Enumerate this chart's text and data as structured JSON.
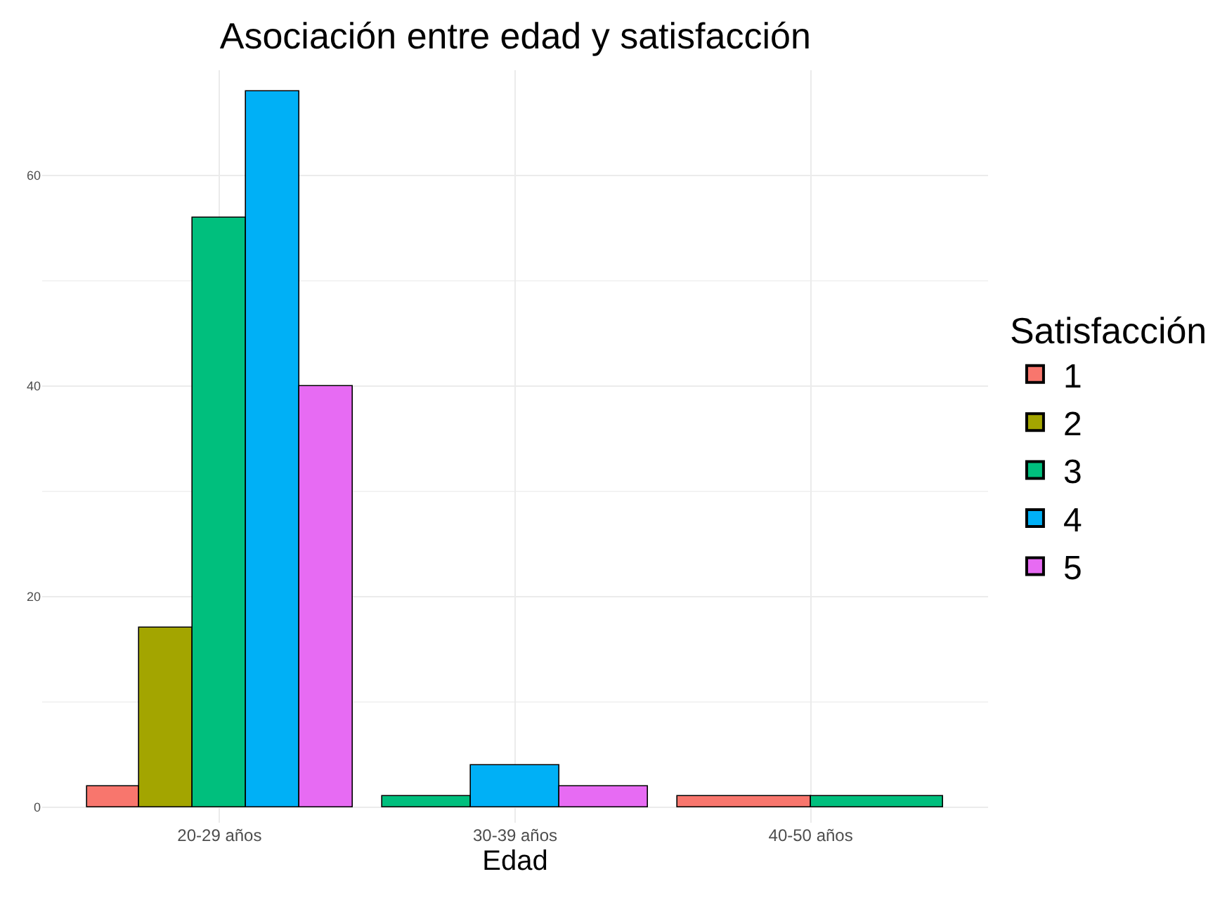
{
  "chart_data": {
    "type": "bar",
    "title": "Asociación entre edad y satisfacción",
    "xlabel": "Edad",
    "legend_title": "Satisfacción",
    "categories": [
      "20-29 años",
      "30-39 años",
      "40-50 años"
    ],
    "series": [
      {
        "name": "1",
        "color": "#f8766d",
        "values": [
          2,
          null,
          1
        ]
      },
      {
        "name": "2",
        "color": "#a3a500",
        "values": [
          17,
          null,
          null
        ]
      },
      {
        "name": "3",
        "color": "#00bf7d",
        "values": [
          56,
          1,
          1
        ]
      },
      {
        "name": "4",
        "color": "#00b0f6",
        "values": [
          68,
          4,
          null
        ]
      },
      {
        "name": "5",
        "color": "#e76bf3",
        "values": [
          40,
          2,
          null
        ]
      }
    ],
    "ylim": [
      -1.5,
      70
    ],
    "yticks": [
      0,
      20,
      40,
      60
    ],
    "grid": true,
    "legend": "right"
  }
}
